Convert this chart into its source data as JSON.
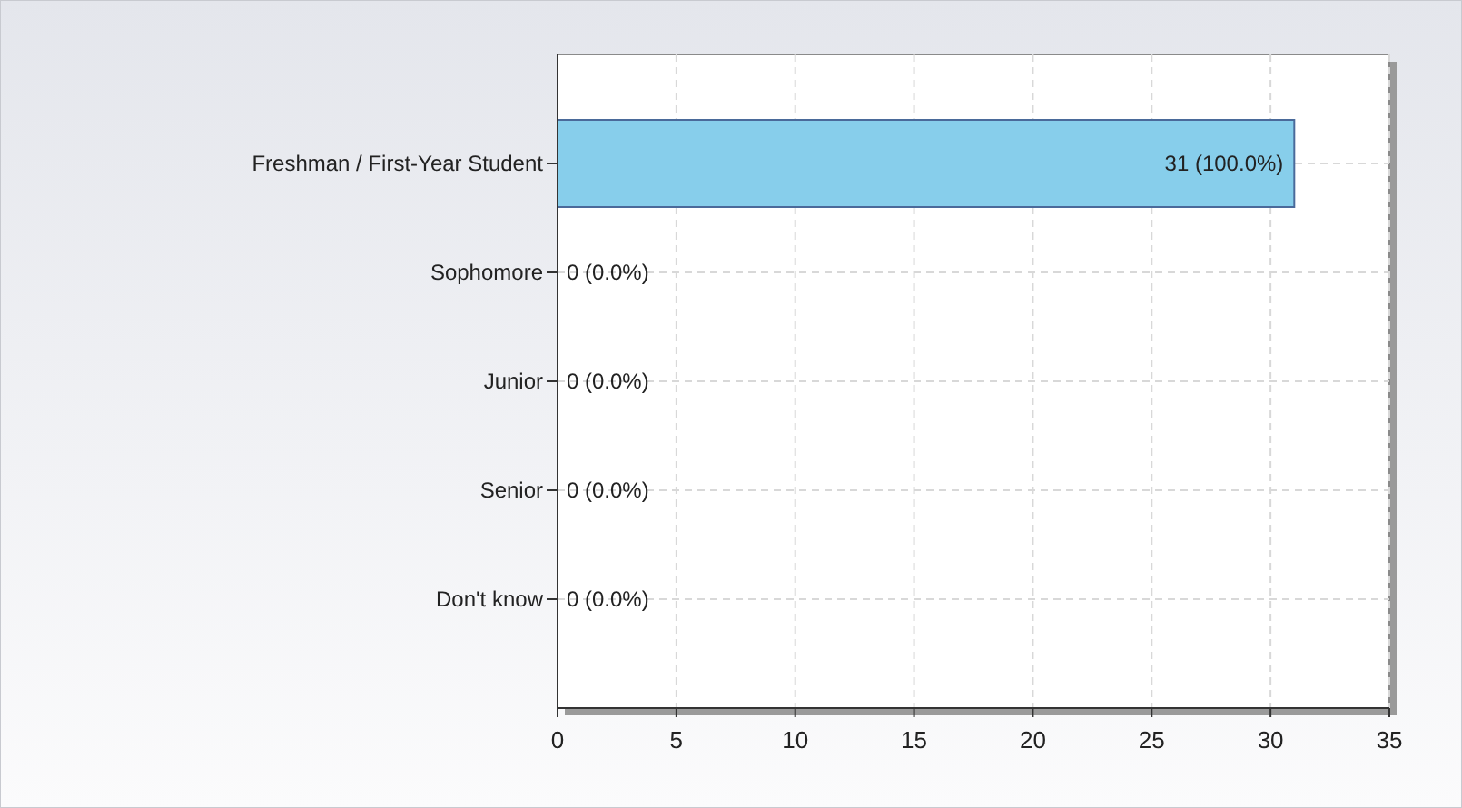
{
  "chart_data": {
    "type": "bar",
    "orientation": "horizontal",
    "categories": [
      "Freshman / First-Year Student",
      "Sophomore",
      "Junior",
      "Senior",
      "Don't know"
    ],
    "values": [
      31,
      0,
      0,
      0,
      0
    ],
    "value_labels": [
      "31 (100.0%)",
      "0 (0.0%)",
      "0 (0.0%)",
      "0 (0.0%)",
      "0 (0.0%)"
    ],
    "color": "#87ceeb",
    "xlim": [
      0,
      35
    ],
    "xticks": [
      0,
      5,
      10,
      15,
      20,
      25,
      30,
      35
    ],
    "grid": true
  }
}
